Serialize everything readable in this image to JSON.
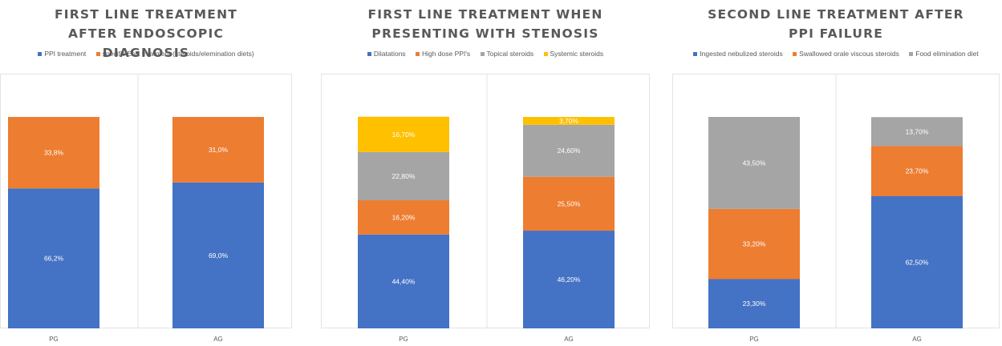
{
  "chart_data": [
    {
      "type": "bar",
      "stacked": true,
      "title": "FIRST LINE TREATMENT AFTER ENDOSCOPIC DIAGNOSIS",
      "categories": [
        "PG",
        "AG"
      ],
      "ylim": [
        0,
        100
      ],
      "legend_position": "top",
      "series": [
        {
          "name": "PPI treatment",
          "color": "#4472C4",
          "values": [
            66.2,
            69.0
          ],
          "labels": [
            "66,2%",
            "69,0%"
          ]
        },
        {
          "name": "specific EoE treatment (steroids/elemination diets)",
          "color": "#ED7D31",
          "values": [
            33.8,
            31.0
          ],
          "labels": [
            "33,8%",
            "31,0%"
          ]
        }
      ]
    },
    {
      "type": "bar",
      "stacked": true,
      "title": "FIRST LINE TREATMENT WHEN PRESENTING WITH STENOSIS",
      "categories": [
        "PG",
        "AG"
      ],
      "ylim": [
        0,
        100
      ],
      "legend_position": "top",
      "series": [
        {
          "name": "Dilatations",
          "color": "#4472C4",
          "values": [
            44.4,
            46.2
          ],
          "labels": [
            "44,40%",
            "46,20%"
          ]
        },
        {
          "name": "High dose PPI's",
          "color": "#ED7D31",
          "values": [
            16.2,
            25.5
          ],
          "labels": [
            "16,20%",
            "25,50%"
          ]
        },
        {
          "name": "Topical steroids",
          "color": "#A5A5A5",
          "values": [
            22.8,
            24.6
          ],
          "labels": [
            "22,80%",
            "24,60%"
          ]
        },
        {
          "name": "Systemic steroids",
          "color": "#FFC000",
          "values": [
            16.7,
            3.7
          ],
          "labels": [
            "16,70%",
            "3,70%"
          ]
        }
      ]
    },
    {
      "type": "bar",
      "stacked": true,
      "title": "SECOND LINE TREATMENT AFTER PPI FAILURE",
      "categories": [
        "PG",
        "AG"
      ],
      "ylim": [
        0,
        100
      ],
      "legend_position": "top",
      "series": [
        {
          "name": "Ingested nebulized steroids",
          "color": "#4472C4",
          "values": [
            23.3,
            62.5
          ],
          "labels": [
            "23,30%",
            "62,50%"
          ]
        },
        {
          "name": "Swallowed orale viscous steroids",
          "color": "#ED7D31",
          "values": [
            33.2,
            23.7
          ],
          "labels": [
            "33,20%",
            "23,70%"
          ]
        },
        {
          "name": "Food elimination diet",
          "color": "#A5A5A5",
          "values": [
            43.5,
            13.7
          ],
          "labels": [
            "43,50%",
            "13,70%"
          ]
        }
      ]
    }
  ]
}
